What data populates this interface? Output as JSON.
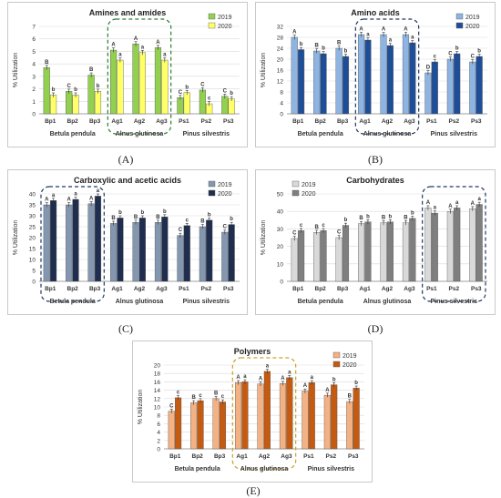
{
  "chart_data": [
    {
      "type": "bar",
      "title": "Amines and amides",
      "ylabel": "% Utilization",
      "caption": "(A)",
      "categories": [
        "Bp1",
        "Bp2",
        "Bp3",
        "Ag1",
        "Ag2",
        "Ag3",
        "Ps1",
        "Ps2",
        "Ps3"
      ],
      "groups": [
        "Betula pendula",
        "Alnus glutinosa",
        "Pinus silvestris"
      ],
      "ylim": [
        0,
        7
      ],
      "yticks": [
        0,
        1,
        2,
        3,
        4,
        5,
        6,
        7
      ],
      "legend_position": "top-right",
      "highlight_group": 1,
      "colors": [
        "#92d050",
        "#ffff66"
      ],
      "series": [
        {
          "name": "2019",
          "values": [
            3.7,
            1.8,
            3.1,
            5.1,
            5.6,
            5.3,
            1.3,
            1.9,
            1.4
          ],
          "letters": [
            "B",
            "C",
            "B",
            "A",
            "A",
            "A",
            "C",
            "C",
            "C"
          ]
        },
        {
          "name": "2020",
          "values": [
            1.5,
            1.5,
            1.8,
            4.3,
            4.9,
            4.3,
            1.7,
            0.8,
            1.2
          ],
          "letters": [
            "b",
            "b",
            "b",
            "a",
            "a",
            "a",
            "b",
            "c",
            "b"
          ]
        }
      ]
    },
    {
      "type": "bar",
      "title": "Amino acids",
      "ylabel": "% Utilization",
      "caption": "(B)",
      "categories": [
        "Bp1",
        "Bp2",
        "Bp3",
        "Ag1",
        "Ag2",
        "Ag3",
        "Ps1",
        "Ps2",
        "Ps3"
      ],
      "groups": [
        "Betula pendula",
        "Alnus glutinosa",
        "Pinus silvestris"
      ],
      "ylim": [
        0,
        32
      ],
      "yticks": [
        0,
        4,
        8,
        12,
        16,
        20,
        24,
        28,
        32
      ],
      "legend_position": "top-right",
      "highlight_group": 1,
      "colors": [
        "#8db4e2",
        "#1f4e99"
      ],
      "series": [
        {
          "name": "2019",
          "values": [
            28,
            23,
            24,
            29,
            29,
            29,
            15,
            20,
            19
          ],
          "letters": [
            "A",
            "B",
            "B",
            "A",
            "A",
            "A",
            "D",
            "C",
            "C"
          ]
        },
        {
          "name": "2020",
          "values": [
            23.5,
            22,
            21,
            27,
            25,
            26,
            19,
            22,
            21
          ],
          "letters": [
            "b",
            "b",
            "b",
            "a",
            "a",
            "a",
            "c",
            "b",
            "b"
          ]
        }
      ]
    },
    {
      "type": "bar",
      "title": "Carboxylic and acetic acids",
      "ylabel": "% Utilization",
      "caption": "(C)",
      "categories": [
        "Bp1",
        "Bp2",
        "Bp3",
        "Ag1",
        "Ag2",
        "Ag3",
        "Ps1",
        "Ps2",
        "Ps3"
      ],
      "groups": [
        "Betula pendula",
        "Alnus glutinosa",
        "Pinus silvestris"
      ],
      "ylim": [
        0,
        40
      ],
      "yticks": [
        0,
        5,
        10,
        15,
        20,
        25,
        30,
        35,
        40
      ],
      "legend_position": "top-right",
      "highlight_group": 0,
      "colors": [
        "#8497b0",
        "#1f2d4e"
      ],
      "series": [
        {
          "name": "2019",
          "values": [
            35,
            35,
            35.5,
            26.5,
            27,
            27,
            21,
            25,
            22.5
          ],
          "letters": [
            "A",
            "A",
            "A",
            "B",
            "B",
            "B",
            "C",
            "B",
            "C"
          ]
        },
        {
          "name": "2020",
          "values": [
            37,
            37.5,
            39,
            29,
            29,
            29.5,
            25.5,
            28,
            26
          ],
          "letters": [
            "a",
            "a",
            "a",
            "b",
            "b",
            "b",
            "c",
            "b",
            "b"
          ]
        }
      ]
    },
    {
      "type": "bar",
      "title": "Carbohydrates",
      "ylabel": "% Utilization",
      "caption": "(D)",
      "categories": [
        "Bp1",
        "Bp2",
        "Bp3",
        "Ag1",
        "Ag2",
        "Ag3",
        "Ps1",
        "Ps2",
        "Ps3"
      ],
      "groups": [
        "Betula pendula",
        "Alnus glutinosa",
        "Pinus silvestris"
      ],
      "ylim": [
        0,
        50
      ],
      "yticks": [
        0,
        10,
        20,
        30,
        40,
        50
      ],
      "legend_position": "top-left",
      "highlight_group": 2,
      "colors": [
        "#d9d9d9",
        "#7f7f7f"
      ],
      "series": [
        {
          "name": "2019",
          "values": [
            24.5,
            28,
            25,
            33,
            33.5,
            33.5,
            42,
            40,
            41.5
          ],
          "letters": [
            "C",
            "B",
            "C",
            "B",
            "B",
            "B",
            "A",
            "A",
            "A"
          ]
        },
        {
          "name": "2020",
          "values": [
            29,
            29,
            32,
            34,
            34,
            36,
            39,
            42,
            44
          ],
          "letters": [
            "c",
            "c",
            "b",
            "b",
            "b",
            "b",
            "a",
            "a",
            "a"
          ]
        }
      ]
    },
    {
      "type": "bar",
      "title": "Polymers",
      "ylabel": "% Utilization",
      "caption": "(E)",
      "categories": [
        "Bp1",
        "Bp2",
        "Bp3",
        "Ag1",
        "Ag2",
        "Ag3",
        "Ps1",
        "Ps2",
        "Ps3"
      ],
      "groups": [
        "Betula pendula",
        "Alnus glutinosa",
        "Pinus silvestris"
      ],
      "ylim": [
        0,
        20
      ],
      "yticks": [
        0,
        2,
        4,
        6,
        8,
        10,
        12,
        14,
        16,
        18,
        20
      ],
      "legend_position": "top-right",
      "highlight_group": 1,
      "colors": [
        "#f4b183",
        "#c55a11"
      ],
      "series": [
        {
          "name": "2019",
          "values": [
            9,
            11,
            12,
            15.8,
            15.5,
            15.6,
            13.8,
            12.8,
            11.3
          ],
          "letters": [
            "C",
            "B",
            "B",
            "A",
            "A",
            "A",
            "A",
            "A",
            "B"
          ]
        },
        {
          "name": "2020",
          "values": [
            12.2,
            11.5,
            11.2,
            16,
            18.5,
            17,
            15.8,
            15.3,
            14.5
          ],
          "letters": [
            "c",
            "c",
            "c",
            "a",
            "a",
            "a",
            "a",
            "b",
            "b"
          ]
        }
      ]
    }
  ]
}
